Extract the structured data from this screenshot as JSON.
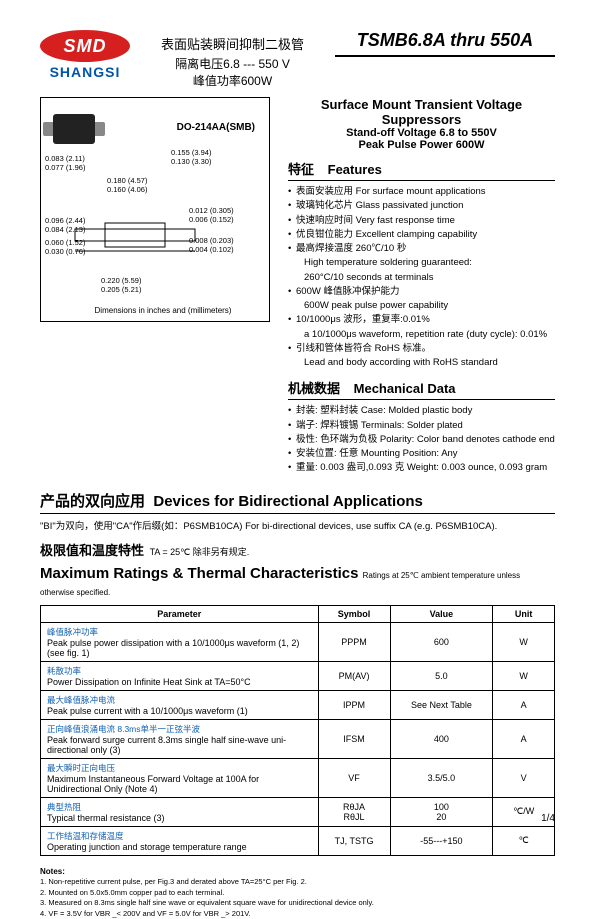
{
  "logo": {
    "text": "SMD",
    "brand": "SHANGSI",
    "oval_color": "#d62020",
    "brand_color": "#0055aa"
  },
  "part_range": "TSMB6.8A thru 550A",
  "cn_head": "表面贴装瞬间抑制二极管",
  "cn_sub1": "隔离电压6.8 --- 550 V",
  "cn_sub2": "峰值功率600W",
  "desc": {
    "title": "Surface Mount Transient Voltage Suppressors",
    "sub1": "Stand-off Voltage 6.8 to 550V",
    "sub2": "Peak Pulse Power 600W"
  },
  "package": {
    "label": "DO-214AA(SMB)",
    "footnote": "Dimensions in inches and (millimeters)",
    "dims": {
      "d1": "0.083 (2.11)",
      "d1b": "0.077 (1.96)",
      "d2": "0.155 (3.94)",
      "d2b": "0.130 (3.30)",
      "d3": "0.180 (4.57)",
      "d3b": "0.160 (4.06)",
      "d4": "0.096 (2.44)",
      "d4b": "0.084 (2.13)",
      "d5": "0.060 (1.52)",
      "d5b": "0.030 (0.76)",
      "d6": "0.012 (0.305)",
      "d6b": "0.006 (0.152)",
      "d7": "0.008 (0.203)",
      "d7b": "0.004 (0.102)",
      "d8": "0.220 (5.59)",
      "d8b": "0.205 (5.21)"
    }
  },
  "features": {
    "heading_cn": "特征",
    "heading_en": "Features",
    "items": [
      {
        "cn": "表面安装应用",
        "en": "For surface mount applications"
      },
      {
        "cn": "玻璃钝化芯片",
        "en": "Glass passivated junction"
      },
      {
        "cn": "快速响应时间",
        "en": "Very fast response time"
      },
      {
        "cn": "优良钳位能力",
        "en": "Excellent clamping capability"
      },
      {
        "cn": "最高焊接温度 260℃/10 秒",
        "en": ""
      },
      {
        "sub": true,
        "text": "High temperature soldering guaranteed:"
      },
      {
        "sub": true,
        "text": "260°C/10 seconds at terminals"
      },
      {
        "cn": "600W 峰值脉冲保护能力",
        "en": ""
      },
      {
        "sub": true,
        "text": "600W peak pulse power capability"
      },
      {
        "cn": "10/1000μs 波形，重复率:0.01%",
        "en": ""
      },
      {
        "sub": true,
        "text": "a 10/1000μs waveform, repetition rate (duty cycle): 0.01%"
      },
      {
        "cn": "引线和管体皆符合 RoHS 标准。",
        "en": ""
      },
      {
        "sub": true,
        "text": "Lead and body according with RoHS standard"
      }
    ]
  },
  "mechanical": {
    "heading_cn": "机械数据",
    "heading_en": "Mechanical Data",
    "items": [
      {
        "cn": "封装: 塑料封装",
        "en": "Case: Molded plastic body"
      },
      {
        "cn": "端子: 焊料镀锡",
        "en": "Terminals: Solder plated"
      },
      {
        "cn": "极性: 色环端为负极",
        "en": "Polarity: Color band denotes cathode end"
      },
      {
        "cn": "安装位置: 任意",
        "en": "Mounting Position: Any"
      },
      {
        "cn": "重量: 0.003 盎司,0.093 克",
        "en": "Weight: 0.003 ounce, 0.093 gram"
      }
    ]
  },
  "bidir": {
    "cn_title": "产品的双向应用",
    "en_title": "Devices for Bidirectional Applications",
    "text": "\"BI\"为双向，使用\"CA\"作后缀(如：P6SMB10CA) For bi-directional devices, use suffix CA (e.g. P6SMB10CA)."
  },
  "ratings": {
    "cn_title": "极限值和温度特性",
    "cond_cn": "TA = 25℃  除非另有规定.",
    "en_title": "Maximum Ratings & Thermal Characteristics",
    "cond_en": "Ratings at 25℃ ambient temperature unless otherwise specified.",
    "headers": {
      "param": "Parameter",
      "symbol": "Symbol",
      "value": "Value",
      "unit": "Unit"
    },
    "rows": [
      {
        "cn": "峰值脉冲功率",
        "en": "Peak pulse power dissipation with a 10/1000μs waveform (1, 2)  (see fig. 1)",
        "symbol": "PPPM",
        "value": "600",
        "unit": "W"
      },
      {
        "cn": "耗散功率",
        "en": "Power Dissipation on Infinite Heat Sink at TA=50°C",
        "symbol": "PM(AV)",
        "value": "5.0",
        "unit": "W"
      },
      {
        "cn": "最大峰值脉冲电流",
        "en": "Peak pulse current with a 10/1000μs waveform (1)",
        "symbol": "IPPM",
        "value": "See Next Table",
        "unit": "A"
      },
      {
        "cn": "正向峰值浪涌电流  8.3ms单半一正弦半波",
        "en": "Peak forward surge current 8.3ms single half sine-wave uni-directional only (3)",
        "symbol": "IFSM",
        "value": "400",
        "unit": "A"
      },
      {
        "cn": "最大瞬时正向电压",
        "en": "Maximum Instantaneous Forward Voltage at 100A for Unidirectional Only (Note 4)",
        "symbol": "VF",
        "value": "3.5/5.0",
        "unit": "V"
      },
      {
        "cn": "典型热阻",
        "en": "Typical thermal resistance (3)",
        "symbol": "RθJA\nRθJL",
        "value": "100\n20",
        "unit": "℃/W"
      },
      {
        "cn": "工作结温和存储温度",
        "en": "Operating junction and storage temperature range",
        "symbol": "TJ, TSTG",
        "value": "-55---+150",
        "unit": "℃"
      }
    ]
  },
  "notes": {
    "label": "Notes:",
    "items": [
      "1. Non-repetitive current pulse, per Fig.3 and derated above TA=25°C per Fig. 2.",
      "2. Mounted on 5.0x5.0mm copper pad to each terminal.",
      "3. Measured on 8.3ms single half sine wave or equivalent square wave for unidirectional device only.",
      "4. VF = 3.5V for VBR _< 200V and VF = 5.0V for VBR _> 201V."
    ]
  },
  "page": "1/4"
}
